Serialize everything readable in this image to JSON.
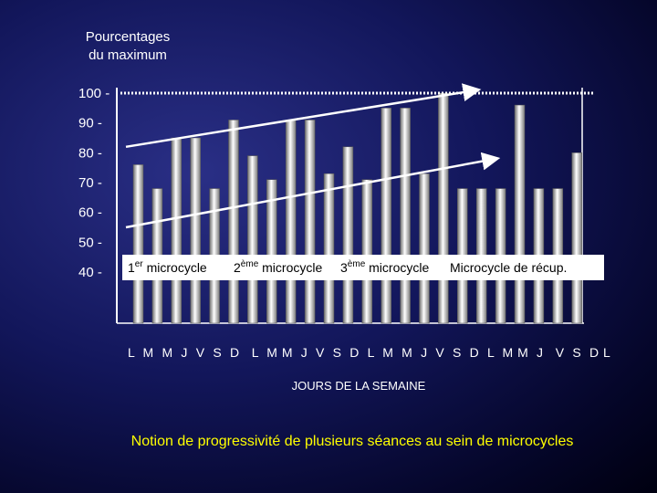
{
  "chart_data": {
    "type": "bar",
    "ylabel_lines": [
      "Pourcentages",
      "du maximum"
    ],
    "xlabel": "JOURS DE LA SEMAINE",
    "caption": "Notion de progressivité de plusieurs séances au sein de microcycles",
    "ylim": [
      40,
      100
    ],
    "yticks": [
      {
        "value": 100,
        "label": "100 -"
      },
      {
        "value": 90,
        "label": "90  -"
      },
      {
        "value": 80,
        "label": "80  -"
      },
      {
        "value": 70,
        "label": "70  -"
      },
      {
        "value": 60,
        "label": "60  -"
      },
      {
        "value": 50,
        "label": "50  -"
      },
      {
        "value": 40,
        "label": "40  -"
      }
    ],
    "day_labels": "L  M  M  J  V  S  D   L  M M  J  V  S  D  L  M  M  J  V  S  D  L  M M  J   V  S  D L",
    "values": [
      76,
      68,
      85,
      85,
      68,
      91,
      79,
      71,
      91,
      91,
      73,
      82,
      71,
      95,
      95,
      73,
      100,
      68,
      68,
      68,
      96,
      68,
      68,
      80
    ],
    "microcycle_labels": [
      {
        "text": "1",
        "sup": "er",
        "rest": " microcycle"
      },
      {
        "text": "2",
        "sup": "ème",
        "rest": " microcycle"
      },
      {
        "text": "3",
        "sup": "ème",
        "rest": " microcycle"
      },
      {
        "text": "Microcycle de récup.",
        "sup": "",
        "rest": ""
      }
    ],
    "reference_line": {
      "value": 100,
      "style": "dotted"
    },
    "trend_arrows": [
      {
        "from_bar": 0,
        "from_value": 82,
        "to_bar": 16,
        "to_value": 101
      },
      {
        "from_bar": 0,
        "from_value": 55,
        "to_bar": 17,
        "to_value": 78
      }
    ]
  },
  "colors": {
    "bar_dark": "#7a7a7a",
    "bar_light": "#ffffff",
    "caption": "#ffff00",
    "text": "#ffffff"
  }
}
